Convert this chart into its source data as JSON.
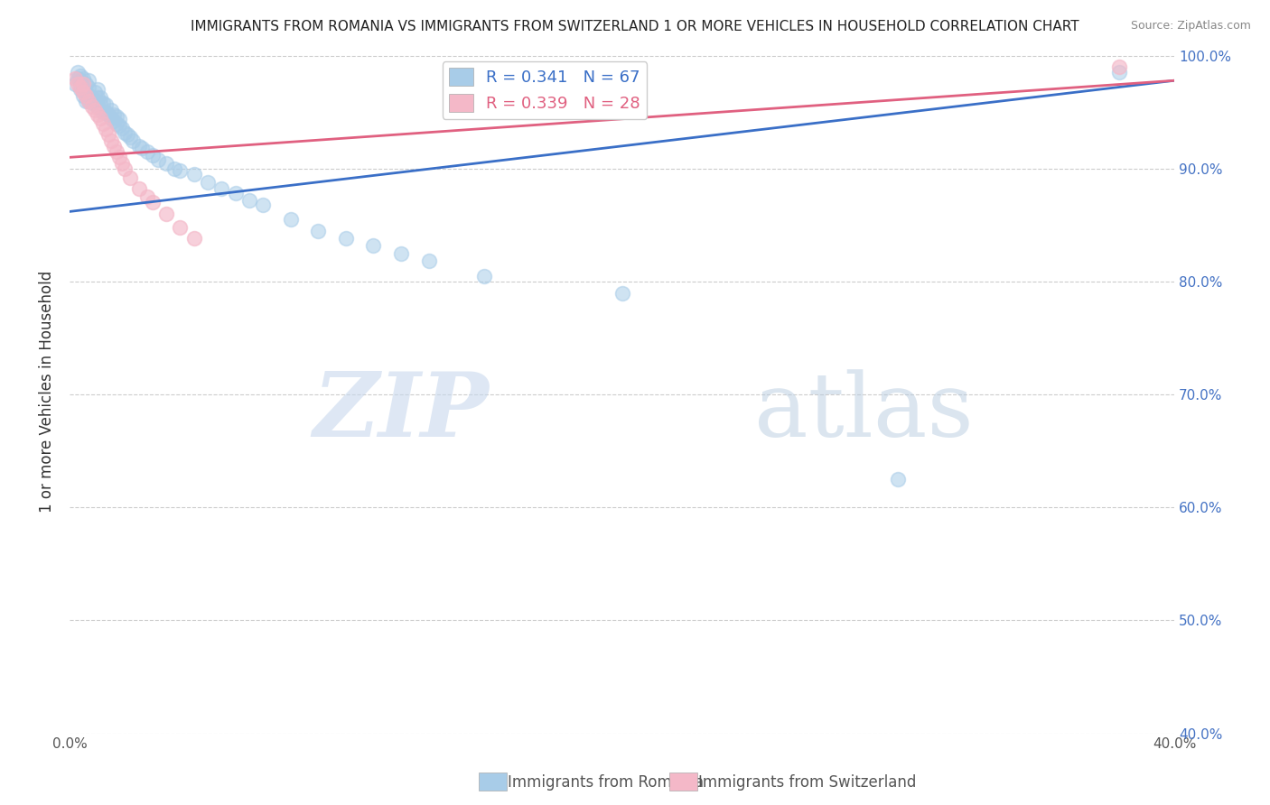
{
  "title": "IMMIGRANTS FROM ROMANIA VS IMMIGRANTS FROM SWITZERLAND 1 OR MORE VEHICLES IN HOUSEHOLD CORRELATION CHART",
  "source": "Source: ZipAtlas.com",
  "ylabel": "1 or more Vehicles in Household",
  "xlim": [
    0.0,
    0.4
  ],
  "ylim": [
    0.4,
    1.005
  ],
  "yticks": [
    0.4,
    0.5,
    0.6,
    0.7,
    0.8,
    0.9,
    1.0
  ],
  "ytick_labels_right": [
    "40.0%",
    "50.0%",
    "60.0%",
    "70.0%",
    "80.0%",
    "90.0%",
    "100.0%"
  ],
  "xticks": [
    0.0,
    0.05,
    0.1,
    0.15,
    0.2,
    0.25,
    0.3,
    0.35,
    0.4
  ],
  "xtick_labels": [
    "0.0%",
    "",
    "",
    "",
    "",
    "",
    "",
    "",
    "40.0%"
  ],
  "romania_color": "#a8cce8",
  "switzerland_color": "#f4b8c8",
  "romania_line_color": "#3a6fc7",
  "switzerland_line_color": "#e06080",
  "romania_R": 0.341,
  "romania_N": 67,
  "switzerland_R": 0.339,
  "switzerland_N": 28,
  "romania_line_x": [
    0.0,
    0.4
  ],
  "romania_line_y": [
    0.862,
    0.978
  ],
  "switzerland_line_x": [
    0.0,
    0.4
  ],
  "switzerland_line_y": [
    0.91,
    0.978
  ],
  "romania_x": [
    0.002,
    0.003,
    0.003,
    0.004,
    0.004,
    0.004,
    0.005,
    0.005,
    0.005,
    0.006,
    0.006,
    0.006,
    0.007,
    0.007,
    0.007,
    0.007,
    0.008,
    0.008,
    0.009,
    0.009,
    0.01,
    0.01,
    0.01,
    0.011,
    0.011,
    0.012,
    0.012,
    0.013,
    0.013,
    0.014,
    0.015,
    0.015,
    0.016,
    0.016,
    0.017,
    0.017,
    0.018,
    0.018,
    0.019,
    0.02,
    0.021,
    0.022,
    0.023,
    0.025,
    0.026,
    0.028,
    0.03,
    0.032,
    0.035,
    0.038,
    0.04,
    0.045,
    0.05,
    0.055,
    0.06,
    0.065,
    0.07,
    0.08,
    0.09,
    0.1,
    0.11,
    0.12,
    0.13,
    0.15,
    0.2,
    0.3,
    0.38
  ],
  "romania_y": [
    0.975,
    0.98,
    0.985,
    0.97,
    0.978,
    0.982,
    0.965,
    0.972,
    0.98,
    0.96,
    0.968,
    0.975,
    0.96,
    0.965,
    0.972,
    0.978,
    0.958,
    0.963,
    0.96,
    0.968,
    0.955,
    0.963,
    0.97,
    0.958,
    0.963,
    0.95,
    0.958,
    0.95,
    0.957,
    0.948,
    0.945,
    0.952,
    0.942,
    0.948,
    0.94,
    0.946,
    0.938,
    0.944,
    0.936,
    0.932,
    0.93,
    0.928,
    0.925,
    0.92,
    0.918,
    0.915,
    0.912,
    0.908,
    0.905,
    0.9,
    0.898,
    0.895,
    0.888,
    0.882,
    0.878,
    0.872,
    0.868,
    0.855,
    0.845,
    0.838,
    0.832,
    0.825,
    0.818,
    0.805,
    0.79,
    0.625,
    0.985
  ],
  "switzerland_x": [
    0.002,
    0.003,
    0.004,
    0.005,
    0.005,
    0.006,
    0.007,
    0.008,
    0.009,
    0.01,
    0.011,
    0.012,
    0.013,
    0.014,
    0.015,
    0.016,
    0.017,
    0.018,
    0.019,
    0.02,
    0.022,
    0.025,
    0.028,
    0.03,
    0.035,
    0.04,
    0.045,
    0.38
  ],
  "switzerland_y": [
    0.98,
    0.975,
    0.972,
    0.968,
    0.975,
    0.965,
    0.96,
    0.955,
    0.952,
    0.948,
    0.945,
    0.94,
    0.935,
    0.93,
    0.925,
    0.92,
    0.915,
    0.91,
    0.905,
    0.9,
    0.892,
    0.882,
    0.875,
    0.87,
    0.86,
    0.848,
    0.838,
    0.99
  ],
  "watermark_zip_color": "#c8d8ed",
  "watermark_atlas_color": "#b8cce0",
  "grid_color": "#cccccc",
  "right_tick_color": "#4472c4",
  "title_fontsize": 11,
  "source_fontsize": 9,
  "tick_fontsize": 11,
  "ylabel_fontsize": 12
}
